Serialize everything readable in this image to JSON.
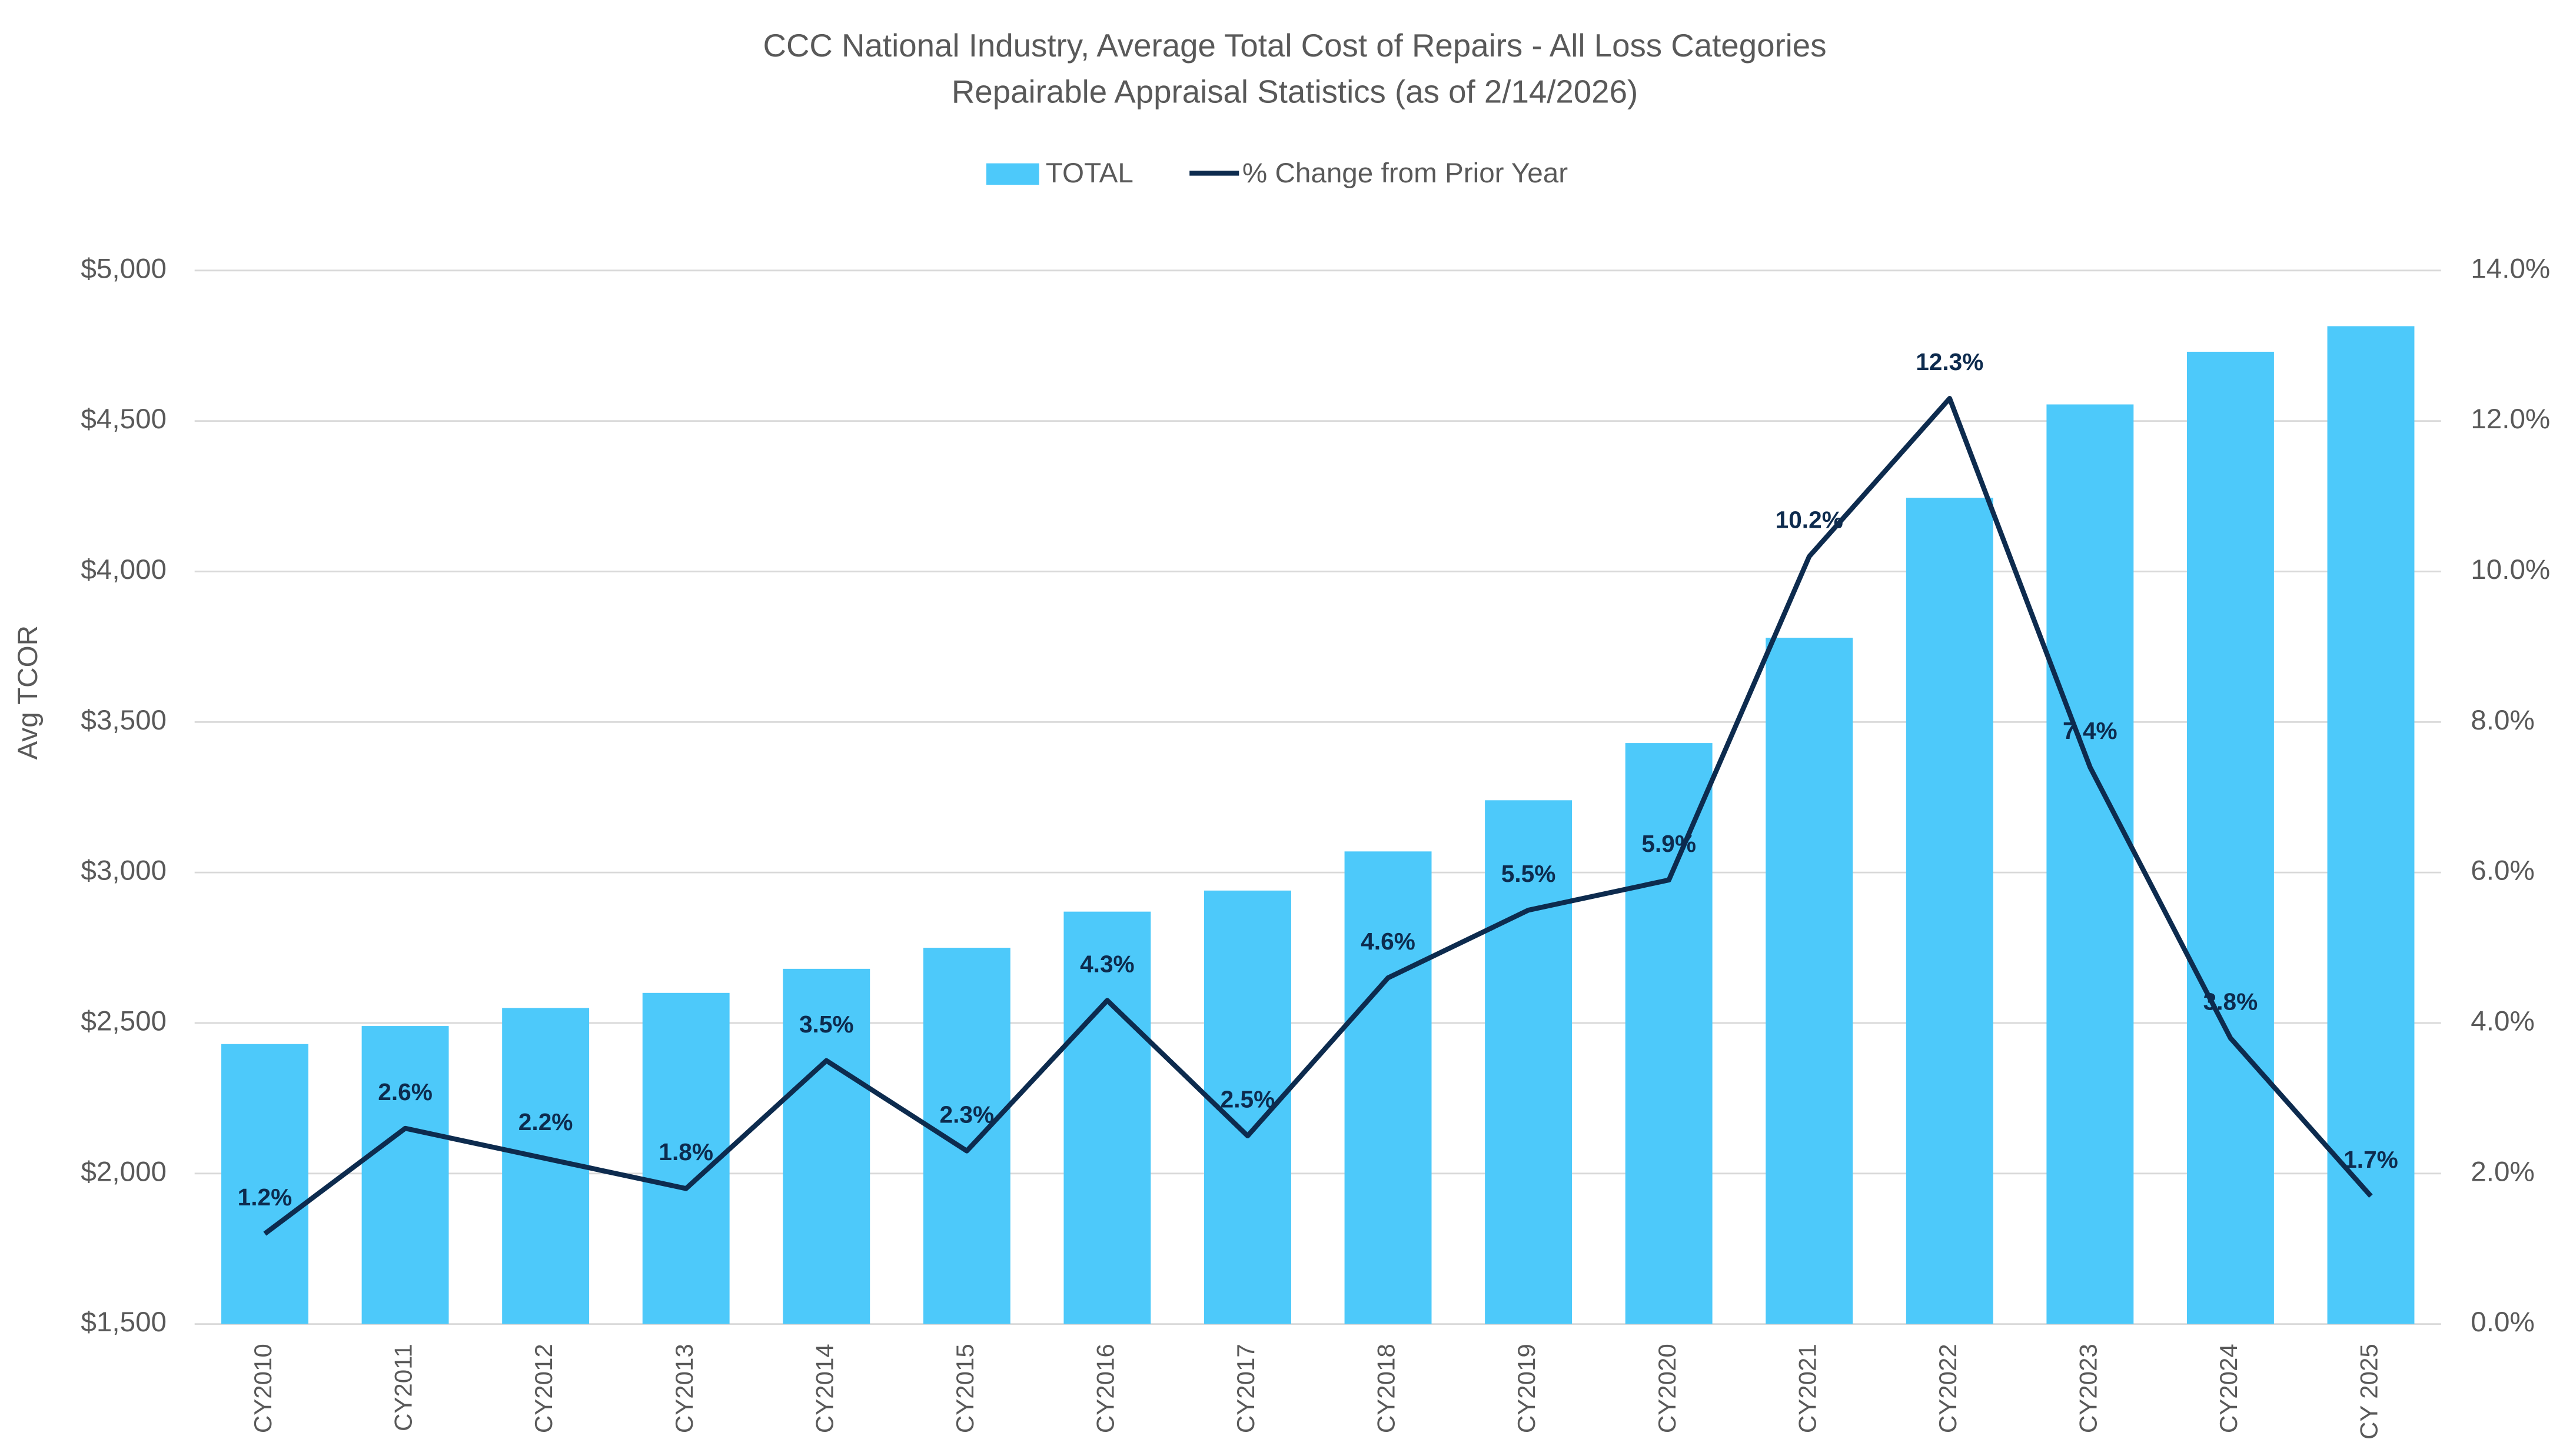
{
  "chart_data": {
    "type": "bar_line",
    "title": "CCC National Industry, Average Total Cost of Repairs - All Loss Categories",
    "subtitle": "Repairable Appraisal Statistics (as of 2/14/2026)",
    "y_label": "Avg TCOR",
    "categories": [
      "CY2010",
      "CY2011",
      "CY2012",
      "CY2013",
      "CY2014",
      "CY2015",
      "CY2016",
      "CY2017",
      "CY2018",
      "CY2019",
      "CY2020",
      "CY2021",
      "CY2022",
      "CY2023",
      "CY2024",
      "CY 2025"
    ],
    "series": [
      {
        "name": "TOTAL",
        "type": "bar",
        "color": "#4dc9fa",
        "values": [
          2430,
          2490,
          2550,
          2600,
          2680,
          2750,
          2870,
          2940,
          3070,
          3240,
          3430,
          3780,
          4245,
          4555,
          4730,
          4815
        ]
      },
      {
        "name": "% Change from Prior Year",
        "type": "line",
        "axis": "y2",
        "color": "#0d2b4e",
        "values": [
          1.2,
          2.6,
          2.2,
          1.8,
          3.5,
          2.3,
          4.3,
          2.5,
          4.6,
          5.5,
          5.9,
          10.2,
          12.3,
          7.4,
          3.8,
          1.7
        ],
        "value_labels": [
          "1.2%",
          "2.6%",
          "2.2%",
          "1.8%",
          "3.5%",
          "2.3%",
          "4.3%",
          "2.5%",
          "4.6%",
          "5.5%",
          "5.9%",
          "10.2%",
          "12.3%",
          "7.4%",
          "3.8%",
          "1.7%"
        ]
      }
    ],
    "ylim": [
      1500,
      5000
    ],
    "yticks": [
      {
        "value": 1500,
        "label": "$1,500"
      },
      {
        "value": 2000,
        "label": "$2,000"
      },
      {
        "value": 2500,
        "label": "$2,500"
      },
      {
        "value": 3000,
        "label": "$3,000"
      },
      {
        "value": 3500,
        "label": "$3,500"
      },
      {
        "value": 4000,
        "label": "$4,000"
      },
      {
        "value": 4500,
        "label": "$4,500"
      },
      {
        "value": 5000,
        "label": "$5,000"
      }
    ],
    "y2lim": [
      0,
      14
    ],
    "y2ticks": [
      {
        "value": 0,
        "label": "0.0%"
      },
      {
        "value": 2,
        "label": "2.0%"
      },
      {
        "value": 4,
        "label": "4.0%"
      },
      {
        "value": 6,
        "label": "6.0%"
      },
      {
        "value": 8,
        "label": "8.0%"
      },
      {
        "value": 10,
        "label": "10.0%"
      },
      {
        "value": 12,
        "label": "12.0%"
      },
      {
        "value": 14,
        "label": "14.0%"
      }
    ],
    "grid": true,
    "legend": "top"
  }
}
